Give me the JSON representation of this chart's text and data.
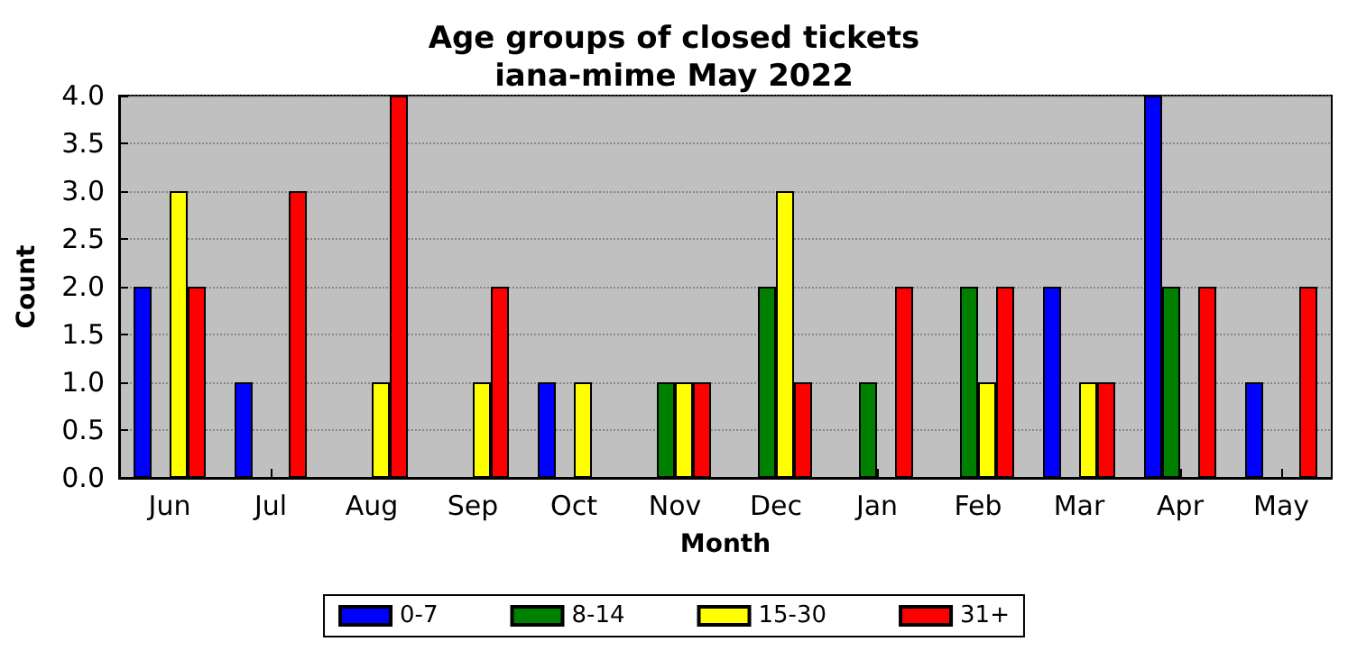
{
  "chart_data": {
    "type": "bar",
    "title": "Age groups of closed tickets\niana-mime May 2022",
    "xlabel": "Month",
    "ylabel": "Count",
    "categories": [
      "Jun",
      "Jul",
      "Aug",
      "Sep",
      "Oct",
      "Nov",
      "Dec",
      "Jan",
      "Feb",
      "Mar",
      "Apr",
      "May"
    ],
    "series": [
      {
        "name": "0-7",
        "color": "#0000ff",
        "values": [
          2,
          1,
          0,
          0,
          1,
          0,
          0,
          0,
          0,
          2,
          4,
          1
        ]
      },
      {
        "name": "8-14",
        "color": "#008000",
        "values": [
          0,
          0,
          0,
          0,
          0,
          1,
          2,
          1,
          2,
          0,
          2,
          0
        ]
      },
      {
        "name": "15-30",
        "color": "#ffff00",
        "values": [
          3,
          0,
          1,
          1,
          1,
          1,
          3,
          0,
          1,
          1,
          0,
          0
        ]
      },
      {
        "name": "31+",
        "color": "#ff0000",
        "values": [
          2,
          3,
          4,
          2,
          0,
          1,
          1,
          2,
          2,
          1,
          2,
          2
        ]
      }
    ],
    "ylim": [
      0,
      4
    ],
    "yticks": [
      {
        "value": 0,
        "label": "0.0"
      },
      0.5,
      {
        "value": 1,
        "label": "1.0"
      },
      1.5,
      {
        "value": 2,
        "label": "2.0"
      },
      2.5,
      {
        "value": 3,
        "label": "3.0"
      },
      3.5,
      {
        "value": 4,
        "label": "4.0"
      }
    ],
    "grid": "y",
    "legend": "bottom"
  }
}
